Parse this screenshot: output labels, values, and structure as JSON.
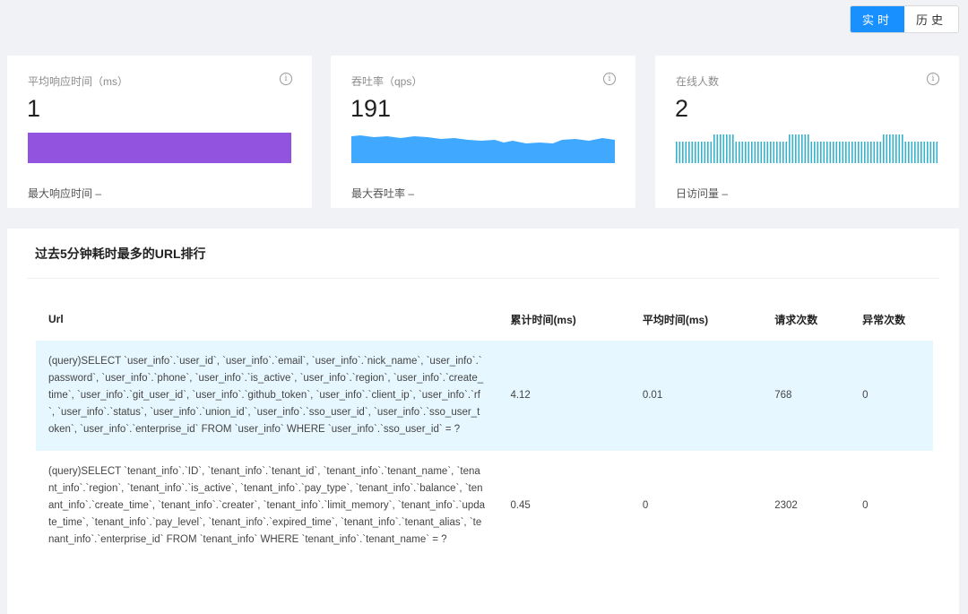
{
  "toggle": {
    "realtime": "实时",
    "history": "历史"
  },
  "cards": [
    {
      "title": "平均响应时间（ms）",
      "value": "1",
      "footer": "最大响应时间 –",
      "color": "#9254de"
    },
    {
      "title": "吞吐率（qps）",
      "value": "191",
      "footer": "最大吞吐率 –",
      "color": "#40a9ff"
    },
    {
      "title": "在线人数",
      "value": "2",
      "footer": "日访问量 –",
      "color": "#36b2cc"
    }
  ],
  "info_icon": "info-icon",
  "ranking": {
    "title": "过去5分钟耗时最多的URL排行",
    "columns": [
      "Url",
      "累计时间(ms)",
      "平均时间(ms)",
      "请求次数",
      "异常次数"
    ],
    "rows": [
      {
        "url": "(query)SELECT `user_info`.`user_id`, `user_info`.`email`, `user_info`.`nick_name`, `user_info`.`password`, `user_info`.`phone`, `user_info`.`is_active`, `user_info`.`region`, `user_info`.`create_time`, `user_info`.`git_user_id`, `user_info`.`github_token`, `user_info`.`client_ip`, `user_info`.`rf`, `user_info`.`status`, `user_info`.`union_id`, `user_info`.`sso_user_id`, `user_info`.`sso_user_token`, `user_info`.`enterprise_id` FROM `user_info` WHERE `user_info`.`sso_user_id` = ?",
        "total": "4.12",
        "avg": "0.01",
        "count": "768",
        "errors": "0"
      },
      {
        "url": "(query)SELECT `tenant_info`.`ID`, `tenant_info`.`tenant_id`, `tenant_info`.`tenant_name`, `tenant_info`.`region`, `tenant_info`.`is_active`, `tenant_info`.`pay_type`, `tenant_info`.`balance`, `tenant_info`.`create_time`, `tenant_info`.`creater`, `tenant_info`.`limit_memory`, `tenant_info`.`update_time`, `tenant_info`.`pay_level`, `tenant_info`.`expired_time`, `tenant_info`.`tenant_alias`, `tenant_info`.`enterprise_id` FROM `tenant_info` WHERE `tenant_info`.`tenant_name` = ?",
        "total": "0.45",
        "avg": "0",
        "count": "2302",
        "errors": "0"
      }
    ]
  }
}
